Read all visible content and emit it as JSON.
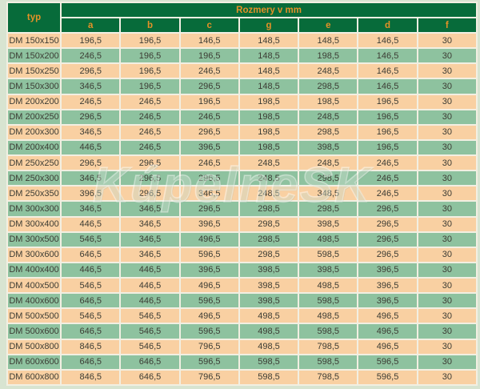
{
  "page": {
    "background": "#d8e4d1"
  },
  "table": {
    "typ_header": "typ",
    "title": "Rozmery v mm",
    "columns": [
      "a",
      "b",
      "c",
      "g",
      "e",
      "d",
      "f"
    ],
    "rows": [
      {
        "typ": "DM 150x150",
        "values": [
          "196,5",
          "196,5",
          "146,5",
          "148,5",
          "148,5",
          "146,5",
          "30"
        ]
      },
      {
        "typ": "DM 150x200",
        "values": [
          "246,5",
          "196,5",
          "196,5",
          "148,5",
          "198,5",
          "146,5",
          "30"
        ]
      },
      {
        "typ": "DM 150x250",
        "values": [
          "296,5",
          "196,5",
          "246,5",
          "148,5",
          "248,5",
          "146,5",
          "30"
        ]
      },
      {
        "typ": "DM 150x300",
        "values": [
          "346,5",
          "196,5",
          "296,5",
          "148,5",
          "298,5",
          "146,5",
          "30"
        ]
      },
      {
        "typ": "DM 200x200",
        "values": [
          "246,5",
          "246,5",
          "196,5",
          "198,5",
          "198,5",
          "196,5",
          "30"
        ]
      },
      {
        "typ": "DM 200x250",
        "values": [
          "296,5",
          "246,5",
          "246,5",
          "198,5",
          "248,5",
          "196,5",
          "30"
        ]
      },
      {
        "typ": "DM 200x300",
        "values": [
          "346,5",
          "246,5",
          "296,5",
          "198,5",
          "298,5",
          "196,5",
          "30"
        ]
      },
      {
        "typ": "DM 200x400",
        "values": [
          "446,5",
          "246,5",
          "396,5",
          "198,5",
          "398,5",
          "196,5",
          "30"
        ]
      },
      {
        "typ": "DM 250x250",
        "values": [
          "296,5",
          "296,5",
          "246,5",
          "248,5",
          "248,5",
          "246,5",
          "30"
        ]
      },
      {
        "typ": "DM 250x300",
        "values": [
          "346,5",
          "296,5",
          "296,5",
          "248,5",
          "298,5",
          "246,5",
          "30"
        ]
      },
      {
        "typ": "DM 250x350",
        "values": [
          "396,5",
          "296,5",
          "346,5",
          "248,5",
          "348,5",
          "246,5",
          "30"
        ]
      },
      {
        "typ": "DM 300x300",
        "values": [
          "346,5",
          "346,5",
          "296,5",
          "298,5",
          "298,5",
          "296,5",
          "30"
        ]
      },
      {
        "typ": "DM 300x400",
        "values": [
          "446,5",
          "346,5",
          "396,5",
          "298,5",
          "398,5",
          "296,5",
          "30"
        ]
      },
      {
        "typ": "DM 300x500",
        "values": [
          "546,5",
          "346,5",
          "496,5",
          "298,5",
          "498,5",
          "296,5",
          "30"
        ]
      },
      {
        "typ": "DM 300x600",
        "values": [
          "646,5",
          "346,5",
          "596,5",
          "298,5",
          "598,5",
          "296,5",
          "30"
        ]
      },
      {
        "typ": "DM 400x400",
        "values": [
          "446,5",
          "446,5",
          "396,5",
          "398,5",
          "398,5",
          "396,5",
          "30"
        ]
      },
      {
        "typ": "DM 400x500",
        "values": [
          "546,5",
          "446,5",
          "496,5",
          "398,5",
          "498,5",
          "396,5",
          "30"
        ]
      },
      {
        "typ": "DM 400x600",
        "values": [
          "646,5",
          "446,5",
          "596,5",
          "398,5",
          "598,5",
          "396,5",
          "30"
        ]
      },
      {
        "typ": "DM 500x500",
        "values": [
          "546,5",
          "546,5",
          "496,5",
          "498,5",
          "498,5",
          "496,5",
          "30"
        ]
      },
      {
        "typ": "DM 500x600",
        "values": [
          "646,5",
          "546,5",
          "596,5",
          "498,5",
          "598,5",
          "496,5",
          "30"
        ]
      },
      {
        "typ": "DM 500x800",
        "values": [
          "846,5",
          "546,5",
          "796,5",
          "498,5",
          "798,5",
          "496,5",
          "30"
        ]
      },
      {
        "typ": "DM 600x600",
        "values": [
          "646,5",
          "646,5",
          "596,5",
          "598,5",
          "598,5",
          "596,5",
          "30"
        ]
      },
      {
        "typ": "DM 600x800",
        "values": [
          "846,5",
          "646,5",
          "796,5",
          "598,5",
          "798,5",
          "596,5",
          "30"
        ]
      }
    ],
    "colors": {
      "header_bg": "#076b3a",
      "header_text": "#e49127",
      "row_odd": "#f9d0a2",
      "row_even": "#8ec29f",
      "gap": "#f2efe2",
      "text": "#3c3c34",
      "page_bg": "#d8e4d1"
    }
  },
  "watermark": {
    "text": "KúpelneSK"
  }
}
